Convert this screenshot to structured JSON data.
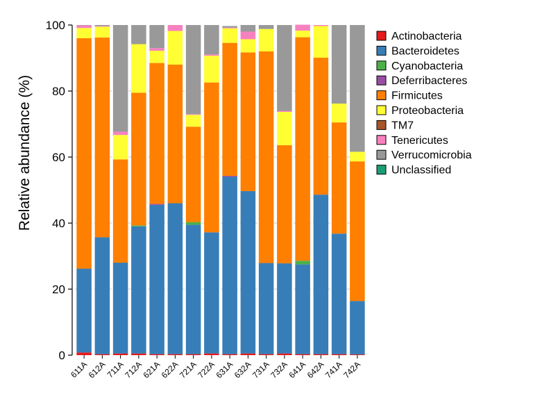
{
  "chart_data": {
    "type": "bar",
    "stacked": true,
    "title": "",
    "xlabel": "",
    "ylabel": "Relative abundance (%)",
    "ylim": [
      0,
      100
    ],
    "yticks": [
      0,
      20,
      40,
      60,
      80,
      100
    ],
    "grid": "horizontal dashed",
    "legend_position": "right",
    "categories": [
      "611A",
      "612A",
      "711A",
      "712A",
      "621A",
      "622A",
      "721A",
      "722A",
      "631A",
      "632A",
      "731A",
      "732A",
      "641A",
      "642A",
      "741A",
      "742A"
    ],
    "series": [
      {
        "name": "Actinobacteria",
        "color": "#e41a1c",
        "values": [
          0.8,
          0.3,
          0.5,
          0.5,
          0.3,
          0.3,
          0.3,
          0.5,
          0.3,
          0.5,
          0.3,
          0.5,
          0.3,
          0.3,
          0.3,
          0.2
        ]
      },
      {
        "name": "Bacteroidetes",
        "color": "#377eb8",
        "values": [
          25.4,
          35.4,
          27.5,
          38.5,
          45.2,
          45.7,
          39.2,
          36.7,
          53.7,
          49.2,
          27.6,
          27.3,
          27.2,
          48.3,
          36.5,
          16.2
        ]
      },
      {
        "name": "Cyanobacteria",
        "color": "#4daf4a",
        "values": [
          0,
          0,
          0,
          0.3,
          0,
          0,
          0.8,
          0,
          0,
          0,
          0,
          0,
          1.1,
          0,
          0,
          0
        ]
      },
      {
        "name": "Deferribacteres",
        "color": "#984ea3",
        "values": [
          0,
          0,
          0,
          0,
          0.3,
          0,
          0,
          0,
          0.3,
          0,
          0,
          0,
          0,
          0,
          0,
          0
        ]
      },
      {
        "name": "Firmicutes",
        "color": "#ff7f00",
        "values": [
          69.8,
          60.5,
          31.3,
          40.2,
          42.7,
          42.0,
          28.9,
          45.4,
          40.3,
          42.0,
          64.1,
          35.8,
          67.7,
          41.5,
          33.7,
          42.3
        ]
      },
      {
        "name": "Proteobacteria",
        "color": "#ffff33",
        "values": [
          3.1,
          3.3,
          7.4,
          14.7,
          3.7,
          10.2,
          3.6,
          8.1,
          4.4,
          4.0,
          6.8,
          10.1,
          2.0,
          9.6,
          5.7,
          2.9
        ]
      },
      {
        "name": "TM7",
        "color": "#a65628",
        "values": [
          0,
          0,
          0,
          0,
          0,
          0,
          0,
          0,
          0,
          0,
          0,
          0,
          0,
          0,
          0,
          0
        ]
      },
      {
        "name": "Tenericutes",
        "color": "#f781bf",
        "values": [
          0.8,
          0.2,
          1.0,
          0,
          0.8,
          1.8,
          0.2,
          0.4,
          0.2,
          2.3,
          0,
          0.3,
          1.8,
          0.3,
          0,
          0
        ]
      },
      {
        "name": "Verrucomicrobia",
        "color": "#999999",
        "values": [
          0.1,
          0.3,
          32.3,
          5.8,
          7.0,
          0,
          27.0,
          8.9,
          0.5,
          2.0,
          1.2,
          26.0,
          0,
          0,
          23.8,
          38.4
        ]
      },
      {
        "name": "Unclassified",
        "color": "#1b9e77",
        "values": [
          0,
          0,
          0,
          0,
          0,
          0,
          0,
          0,
          0,
          0,
          0,
          0,
          0,
          0,
          0,
          0
        ]
      }
    ]
  }
}
